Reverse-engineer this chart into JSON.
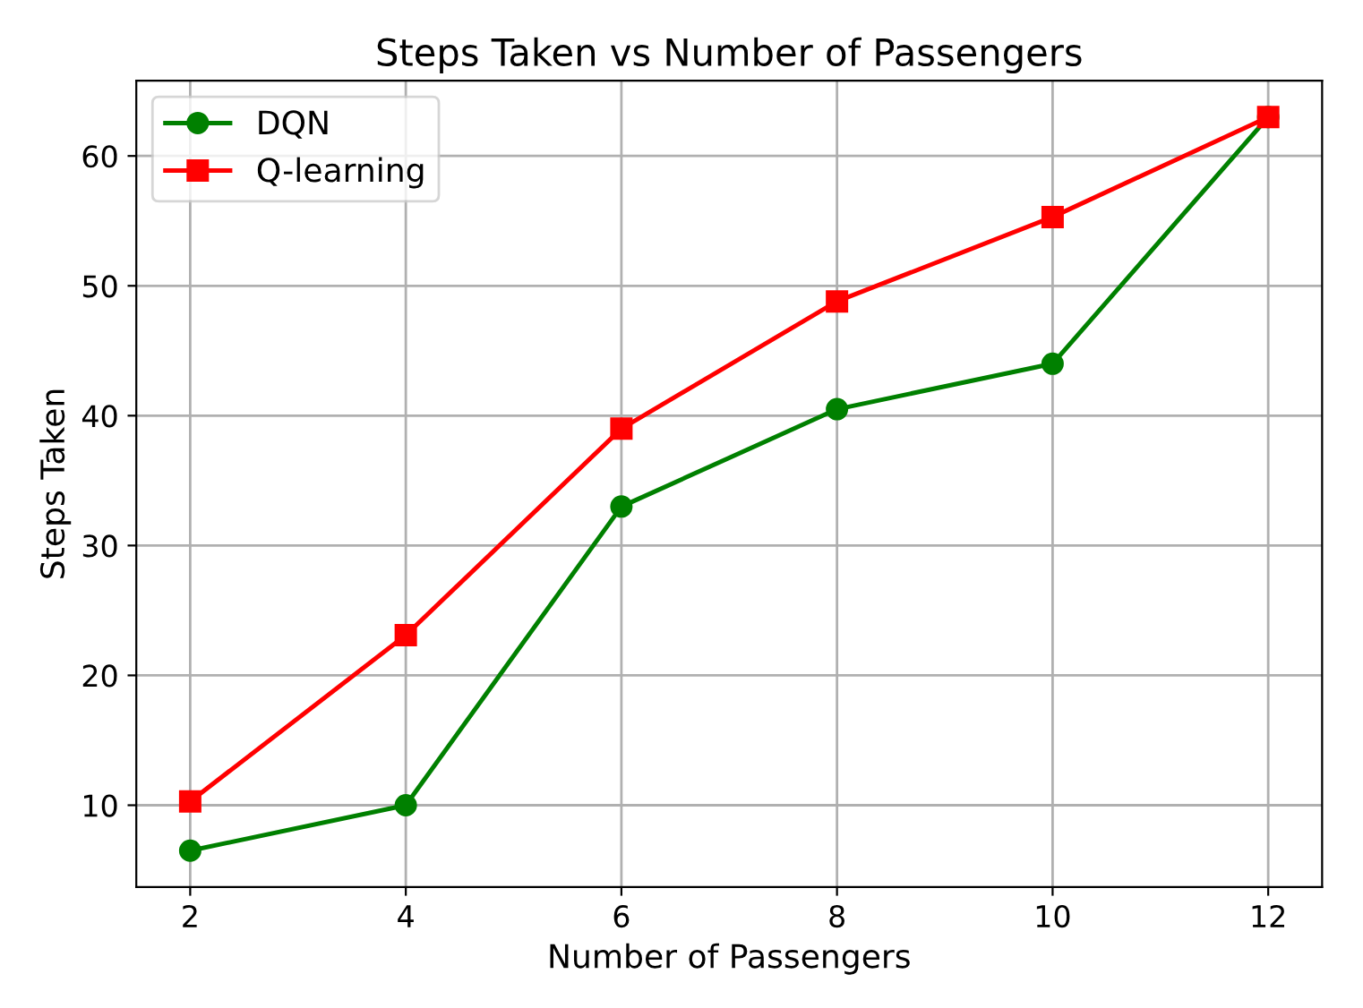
{
  "chart_data": {
    "type": "line",
    "title": "Steps Taken vs Number of Passengers",
    "xlabel": "Number of Passengers",
    "ylabel": "Steps Taken",
    "x": [
      2,
      4,
      6,
      8,
      10,
      12
    ],
    "series": [
      {
        "name": "DQN",
        "color": "#008000",
        "marker": "circle",
        "values": [
          6.5,
          10.0,
          33.0,
          40.5,
          44.0,
          63.0
        ]
      },
      {
        "name": "Q-learning",
        "color": "#ff0000",
        "marker": "square",
        "values": [
          10.3,
          23.1,
          39.0,
          48.8,
          55.3,
          63.0
        ]
      }
    ],
    "xlim": [
      1.5,
      12.5
    ],
    "xticks": [
      2,
      4,
      6,
      8,
      10,
      12
    ],
    "ylim": [
      3.7,
      65.8
    ],
    "yticks": [
      10,
      20,
      30,
      40,
      50,
      60
    ],
    "grid": true,
    "legend": "top left",
    "line_style": "solid"
  }
}
